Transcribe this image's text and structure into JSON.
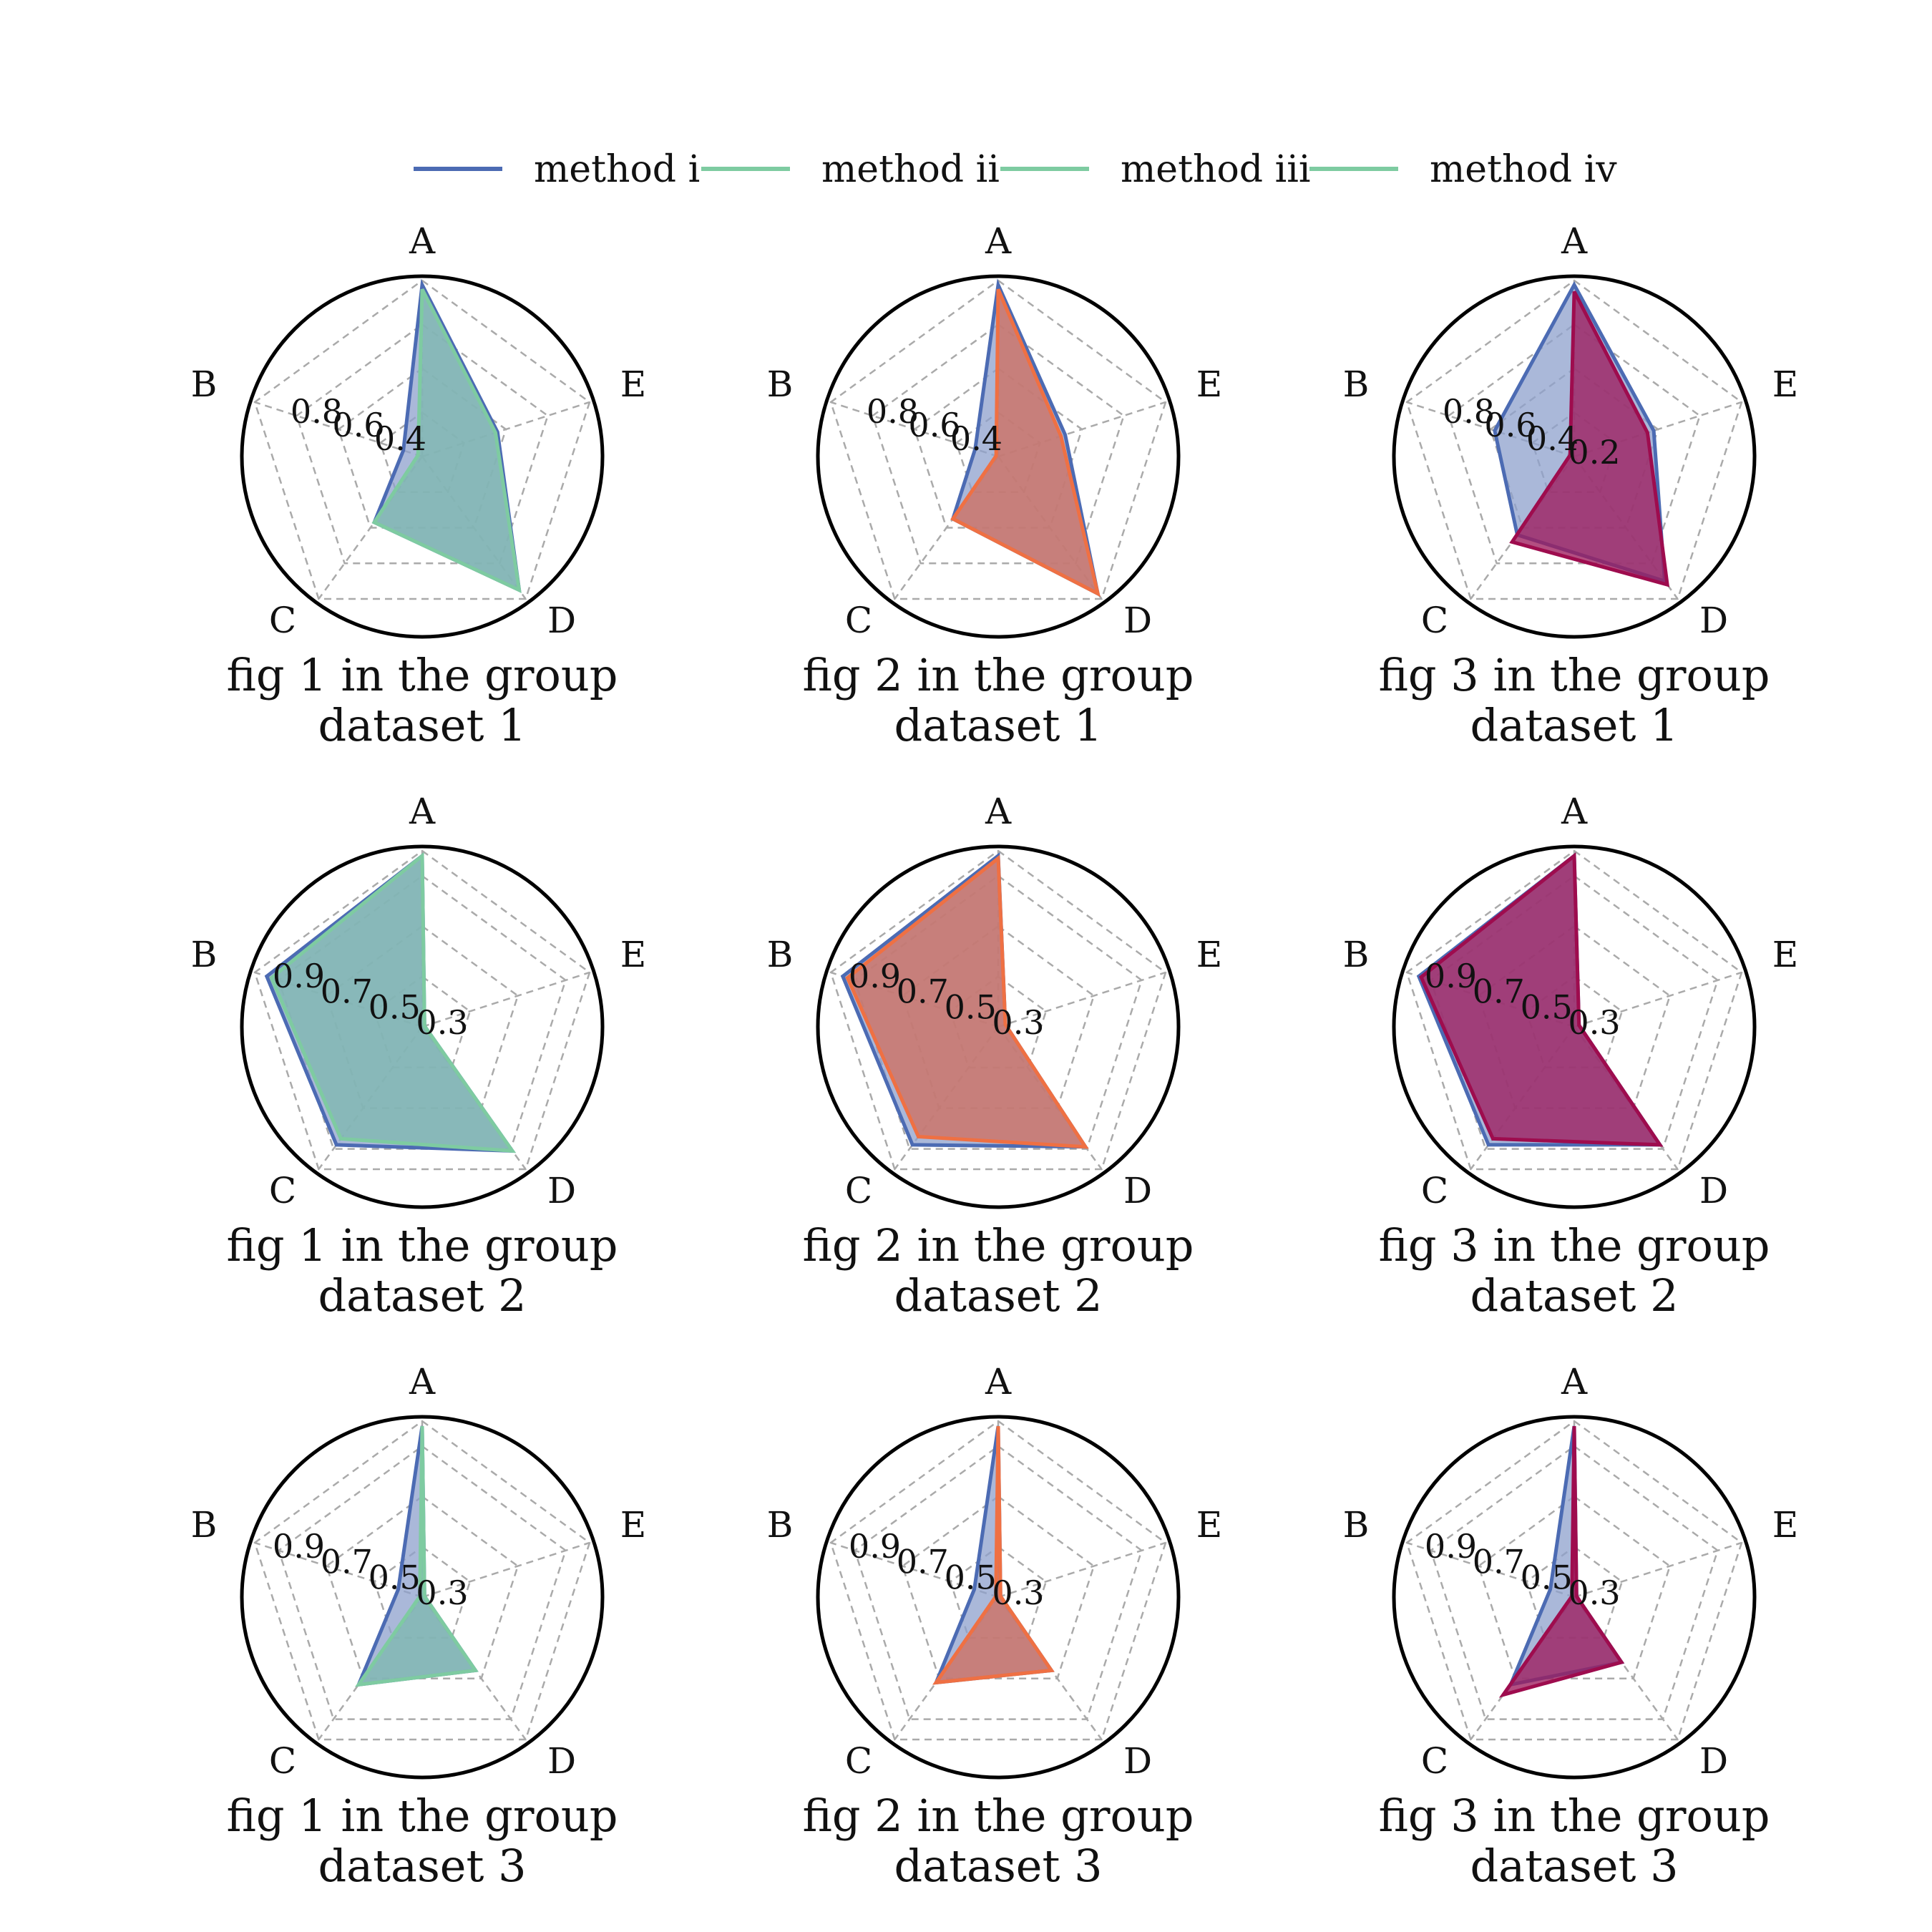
{
  "chart_data": {
    "type": "radar",
    "axes": [
      "A",
      "E",
      "D",
      "C",
      "B"
    ],
    "grid": true,
    "legend_position": "top-center",
    "legend": [
      {
        "label": "method i",
        "color": "#4c6bb3"
      },
      {
        "label": "method ii",
        "color": "#7ecba1"
      },
      {
        "label": "method iii",
        "color": "#7ecba1"
      },
      {
        "label": "method iv",
        "color": "#7ecba1"
      }
    ],
    "columns": [
      {
        "second_color": "#7ecba1",
        "second_fill": "#7fb8b0"
      },
      {
        "second_color": "#ef7043",
        "second_fill": "#d07060"
      },
      {
        "second_color": "#9e0c4e",
        "second_fill": "#9e1c5e"
      }
    ],
    "rows": [
      {
        "dataset": "dataset 1",
        "rmin": 0.2,
        "rmax": 1.0,
        "ticks": [
          0.8,
          0.6,
          0.4
        ],
        "ticks_col3": [
          0.8,
          0.6,
          0.4,
          0.2
        ],
        "panels": [
          {
            "caption": "fig 1 in the group",
            "series": [
              {
                "name": "method i",
                "values": [
                  0.98,
                  0.56,
                  0.95,
                  0.57,
                  0.29
                ]
              },
              {
                "name": "method ii",
                "values": [
                  0.96,
                  0.55,
                  0.95,
                  0.57,
                  0.22
                ]
              }
            ]
          },
          {
            "caption": "fig 2 in the group",
            "series": [
              {
                "name": "method i",
                "values": [
                  0.98,
                  0.52,
                  0.97,
                  0.55,
                  0.31
                ]
              },
              {
                "name": "method ii",
                "values": [
                  0.96,
                  0.5,
                  0.97,
                  0.55,
                  0.21
                ]
              }
            ]
          },
          {
            "caption": "fig 3 in the group",
            "series": [
              {
                "name": "method i",
                "values": [
                  0.98,
                  0.58,
                  0.9,
                  0.64,
                  0.58
                ]
              },
              {
                "name": "method ii",
                "values": [
                  0.95,
                  0.55,
                  0.92,
                  0.68,
                  0.22
                ]
              }
            ]
          }
        ]
      },
      {
        "dataset": "dataset 2",
        "rmin": 0.3,
        "rmax": 1.0,
        "ticks": [
          0.9,
          0.7,
          0.5,
          0.3
        ],
        "ticks_col3": [
          0.9,
          0.7,
          0.5,
          0.3
        ],
        "panels": [
          {
            "caption": "fig 1 in the group",
            "series": [
              {
                "name": "method i",
                "values": [
                  0.98,
                  0.31,
                  0.91,
                  0.88,
                  0.95
                ]
              },
              {
                "name": "method ii",
                "values": [
                  0.98,
                  0.31,
                  0.91,
                  0.85,
                  0.93
                ]
              }
            ]
          },
          {
            "caption": "fig 2 in the group",
            "series": [
              {
                "name": "method i",
                "values": [
                  0.98,
                  0.33,
                  0.89,
                  0.88,
                  0.95
                ]
              },
              {
                "name": "method ii",
                "values": [
                  0.97,
                  0.33,
                  0.89,
                  0.84,
                  0.93
                ]
              }
            ]
          },
          {
            "caption": "fig 3 in the group",
            "series": [
              {
                "name": "method i",
                "values": [
                  0.98,
                  0.32,
                  0.88,
                  0.88,
                  0.95
                ]
              },
              {
                "name": "method ii",
                "values": [
                  0.98,
                  0.32,
                  0.88,
                  0.85,
                  0.94
                ]
              }
            ]
          }
        ]
      },
      {
        "dataset": "dataset 3",
        "rmin": 0.3,
        "rmax": 1.0,
        "ticks": [
          0.9,
          0.7,
          0.5,
          0.3
        ],
        "ticks_col3": [
          0.9,
          0.7,
          0.5,
          0.3
        ],
        "panels": [
          {
            "caption": "fig 1 in the group",
            "series": [
              {
                "name": "method i",
                "values": [
                  0.98,
                  0.31,
                  0.66,
                  0.73,
                  0.4
                ]
              },
              {
                "name": "method ii",
                "values": [
                  0.98,
                  0.31,
                  0.66,
                  0.73,
                  0.31
                ]
              }
            ]
          },
          {
            "caption": "fig 2 in the group",
            "series": [
              {
                "name": "method i",
                "values": [
                  0.98,
                  0.31,
                  0.66,
                  0.72,
                  0.4
                ]
              },
              {
                "name": "method ii",
                "values": [
                  0.98,
                  0.31,
                  0.66,
                  0.72,
                  0.31
                ]
              }
            ]
          },
          {
            "caption": "fig 3 in the group",
            "series": [
              {
                "name": "method i",
                "values": [
                  0.98,
                  0.31,
                  0.62,
                  0.73,
                  0.4
                ]
              },
              {
                "name": "method ii",
                "values": [
                  0.98,
                  0.31,
                  0.62,
                  0.78,
                  0.31
                ]
              }
            ]
          }
        ]
      }
    ]
  }
}
